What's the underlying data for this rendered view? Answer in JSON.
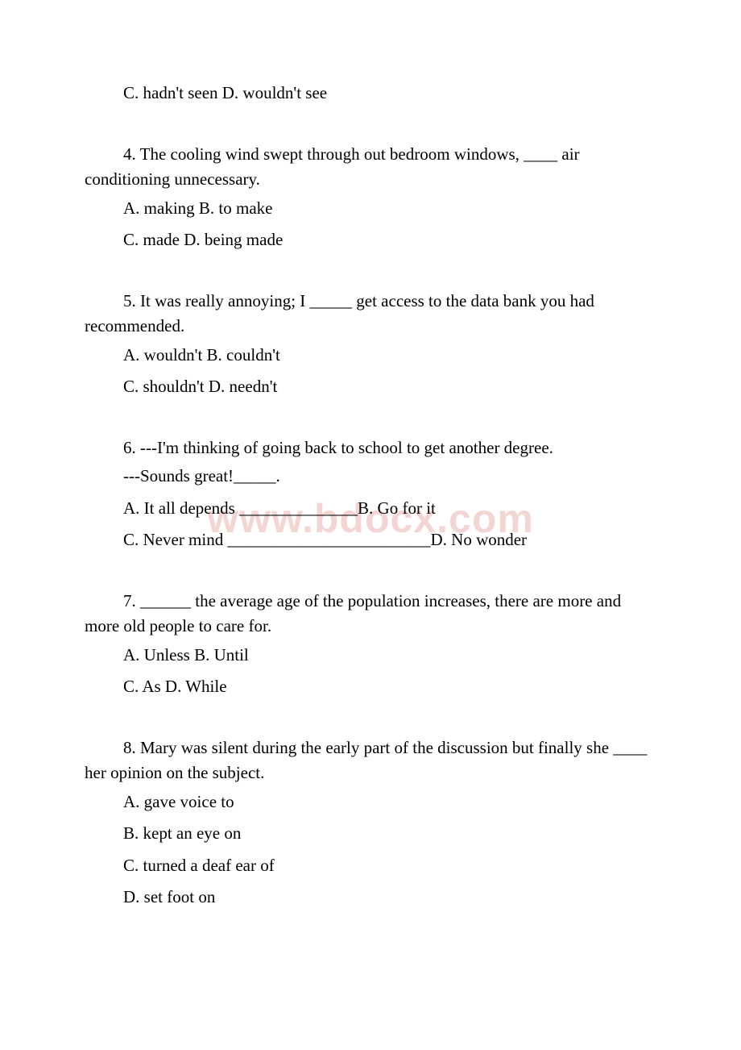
{
  "watermark": "www.bdocx.com",
  "q3": {
    "optCD": "C. hadn't seen D. wouldn't see"
  },
  "q4": {
    "text": "4.  The cooling wind swept through out bedroom windows, ____ air conditioning unnecessary.",
    "optAB": "A. making B. to make",
    "optCD": "C. made D. being made"
  },
  "q5": {
    "text": "5.  It was really annoying; I _____ get access to the data bank you had recommended.",
    "optAB": "A. wouldn't B. couldn't",
    "optCD": "C. shouldn't D. needn't"
  },
  "q6": {
    "text": "6.  ---I'm thinking of going back to school to get another degree.",
    "reply": "---Sounds great!_____.",
    "optA": "A. It all depends ______________",
    "optB": "B. Go for it",
    "optC": "C. Never mind ________________________",
    "optD": "D. No wonder"
  },
  "q7": {
    "text": "7.  ______ the average age of the population increases, there are more and more old people to care for.",
    "optAB": "A. Unless B. Until",
    "optCD": "C. As D. While"
  },
  "q8": {
    "text": "8.  Mary was silent during the early part of the discussion but finally she ____ her opinion on the subject.",
    "optA": "A. gave voice to",
    "optB": "B. kept an eye on",
    "optC": "C. turned a deaf ear of",
    "optD": "D. set foot on"
  }
}
